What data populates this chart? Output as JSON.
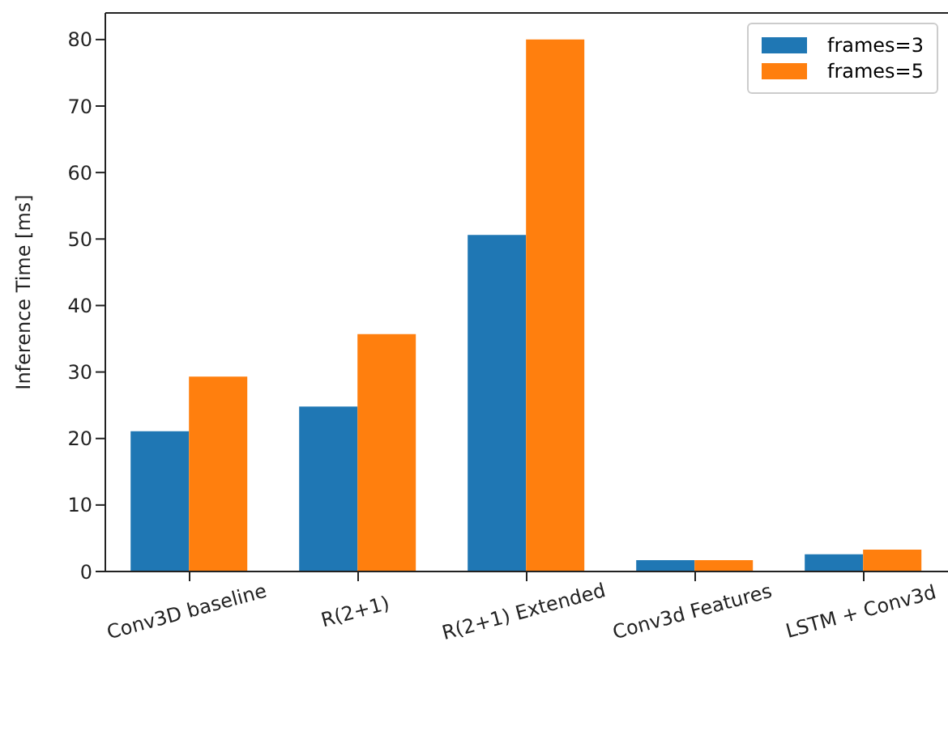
{
  "chart_data": {
    "type": "bar",
    "ylabel": "Inference Time [ms]",
    "categories": [
      "Conv3D baseline",
      "R(2+1)",
      "R(2+1) Extended",
      "Conv3d Features",
      "LSTM + Conv3d"
    ],
    "series": [
      {
        "name": "frames=3",
        "color": "#1f77b4",
        "values": [
          21.1,
          24.8,
          50.6,
          1.7,
          2.6
        ]
      },
      {
        "name": "frames=5",
        "color": "#ff7f0e",
        "values": [
          29.3,
          35.7,
          80.0,
          1.7,
          3.3
        ]
      }
    ],
    "ylim": [
      0,
      84
    ],
    "yticks": [
      0,
      10,
      20,
      30,
      40,
      50,
      60,
      70,
      80
    ],
    "legend": "top right"
  }
}
